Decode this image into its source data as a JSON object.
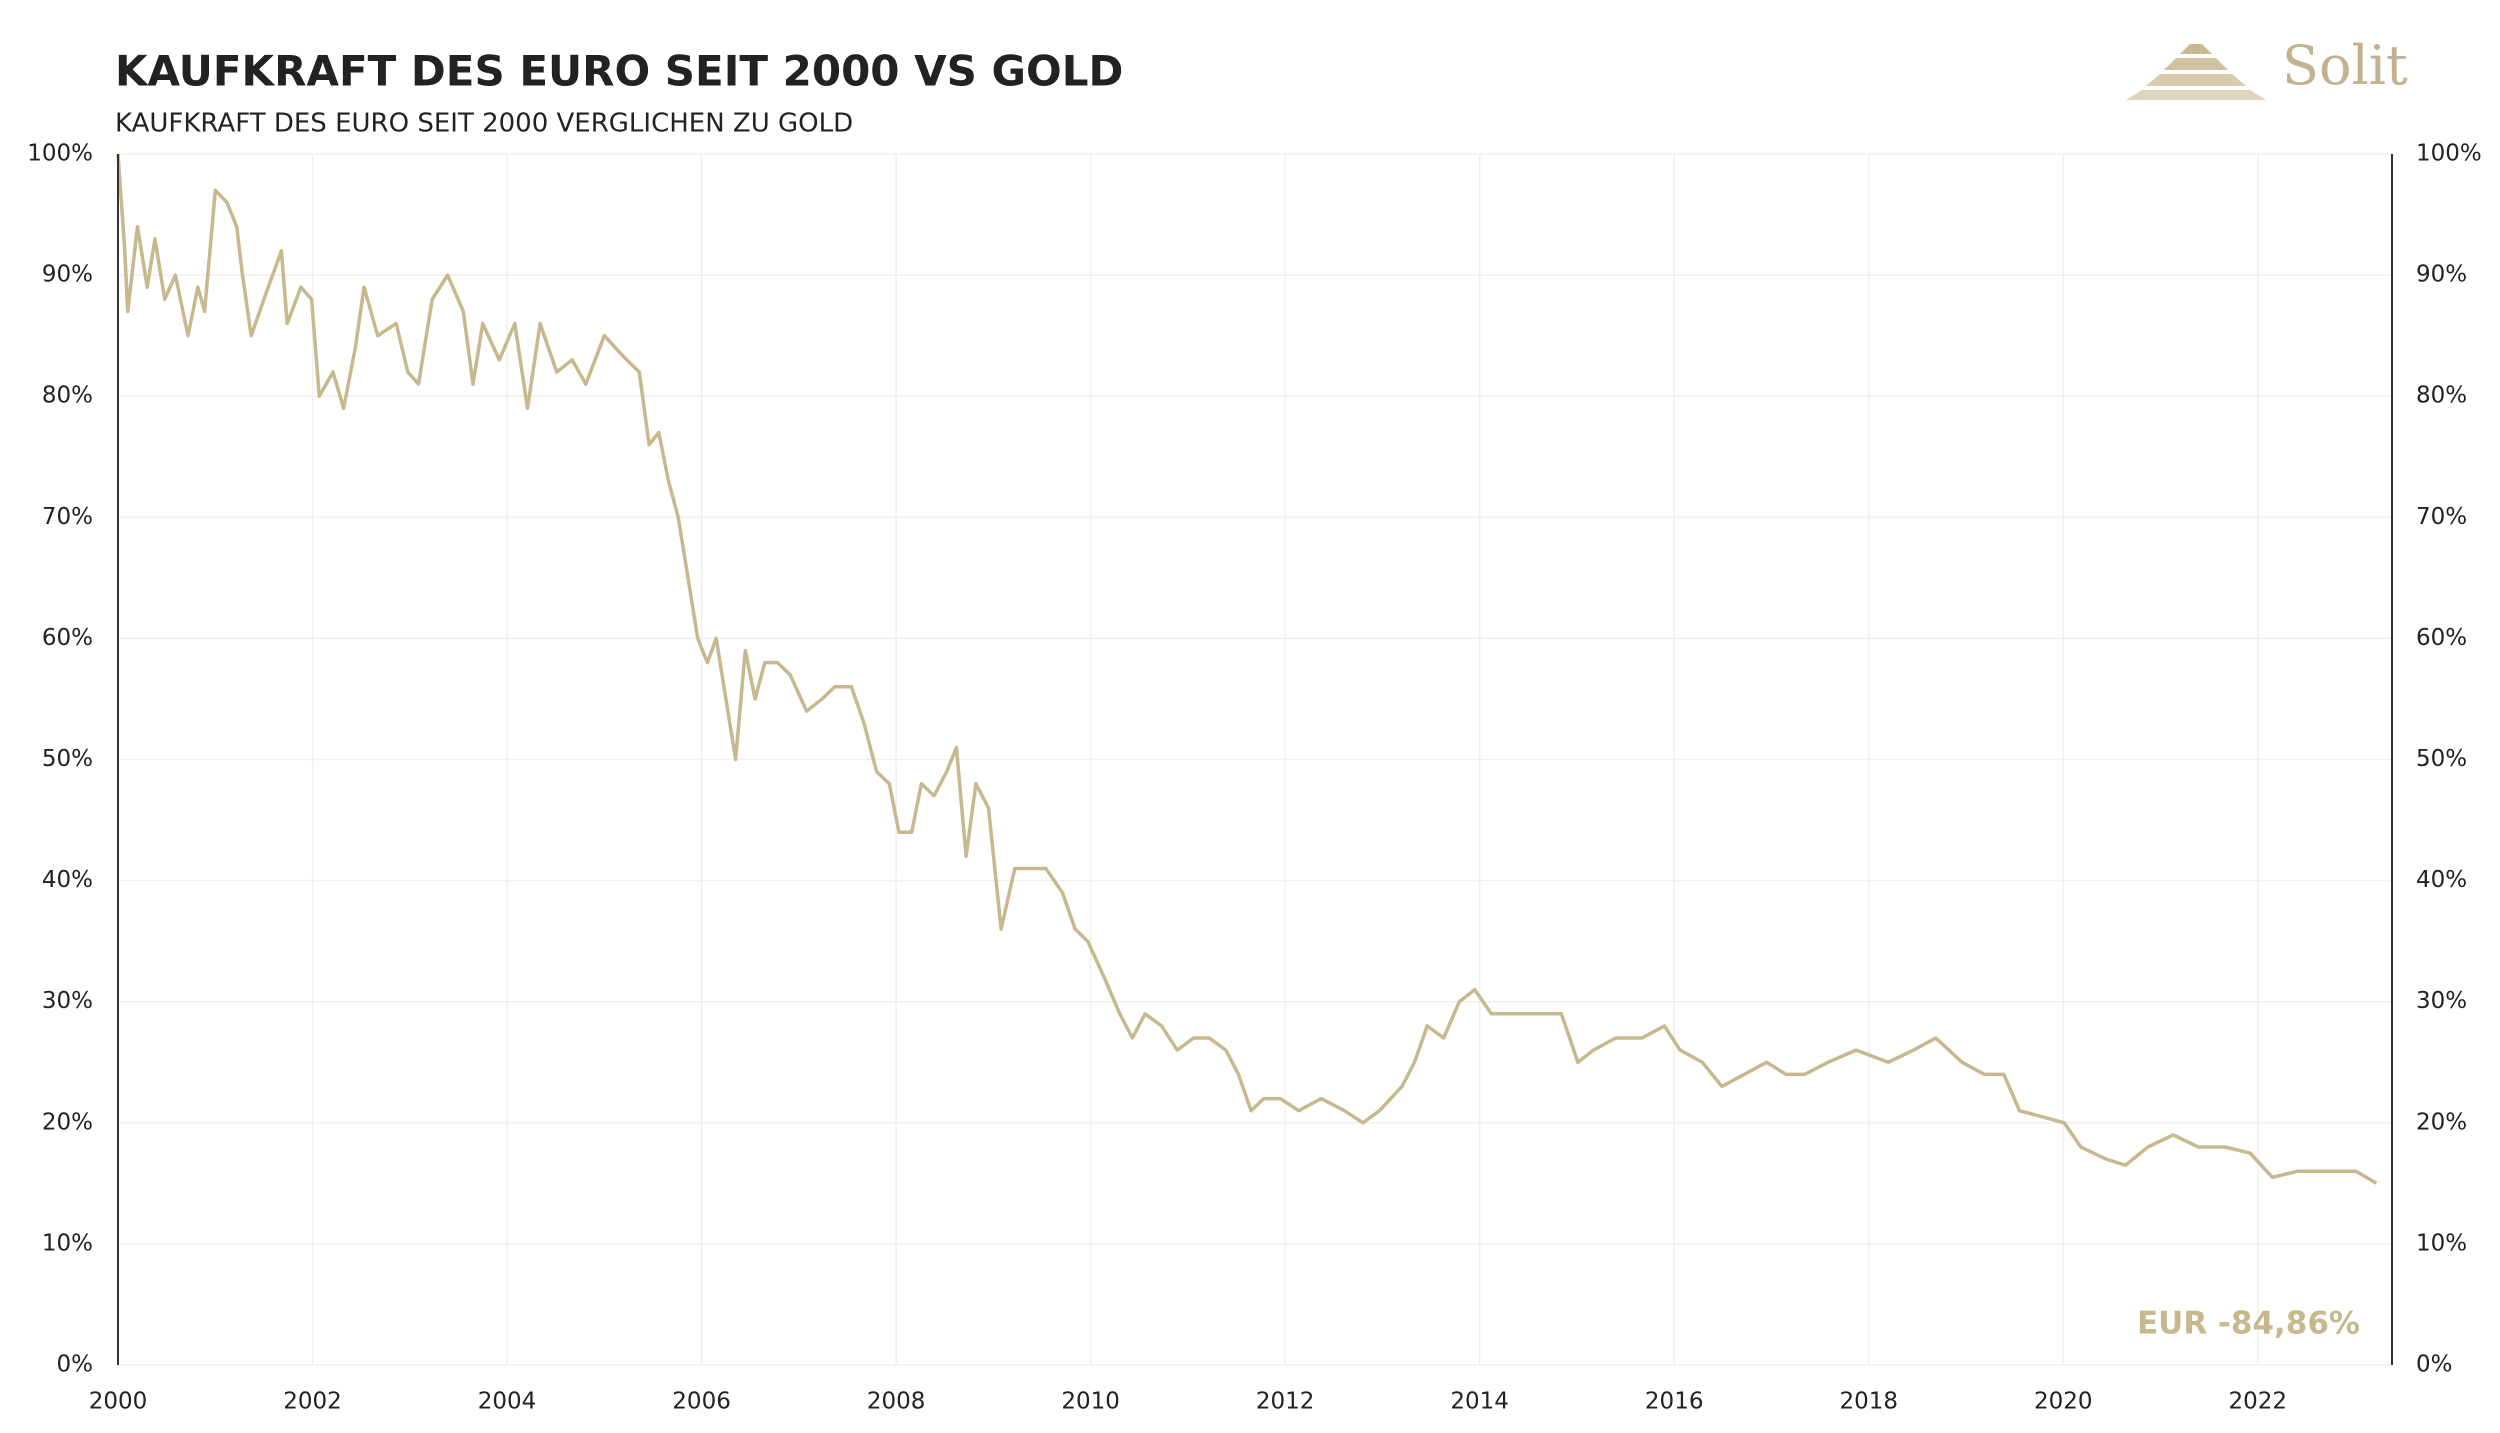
{
  "chart_data": {
    "type": "line",
    "title": "KAUFKRAFT DES EURO SEIT 2000 VS GOLD",
    "subtitle": "KAUFKRAFT DES EURO SEIT 2000 VERGLICHEN ZU GOLD",
    "annotation": "EUR -84,86%",
    "brand": "Solit",
    "xlim": [
      2000,
      2023.38
    ],
    "xticks": [
      2000,
      2002,
      2004,
      2006,
      2008,
      2010,
      2012,
      2014,
      2016,
      2018,
      2020,
      2022
    ],
    "ylim": [
      0,
      100
    ],
    "yticks": [
      {
        "value": 0,
        "label": "0%"
      },
      {
        "value": 10,
        "label": "10%"
      },
      {
        "value": 20,
        "label": "20%"
      },
      {
        "value": 30,
        "label": "30%"
      },
      {
        "value": 40,
        "label": "40%"
      },
      {
        "value": 50,
        "label": "50%"
      },
      {
        "value": 60,
        "label": "60%"
      },
      {
        "value": 70,
        "label": "70%"
      },
      {
        "value": 80,
        "label": "80%"
      },
      {
        "value": 90,
        "label": "90%"
      },
      {
        "value": 100,
        "label": "100%"
      }
    ],
    "grid": true,
    "x": [
      2000.0,
      2000.07,
      2000.1,
      2000.2,
      2000.3,
      2000.38,
      2000.48,
      2000.59,
      2000.72,
      2000.82,
      2000.89,
      2001.0,
      2001.12,
      2001.22,
      2001.28,
      2001.37,
      2001.5,
      2001.68,
      2001.74,
      2001.88,
      2001.99,
      2002.07,
      2002.21,
      2002.32,
      2002.44,
      2002.53,
      2002.67,
      2002.86,
      2002.98,
      2003.09,
      2003.23,
      2003.39,
      2003.55,
      2003.65,
      2003.75,
      2003.92,
      2004.08,
      2004.21,
      2004.34,
      2004.51,
      2004.67,
      2004.81,
      2005.0,
      2005.23,
      2005.36,
      2005.46,
      2005.56,
      2005.66,
      2005.76,
      2005.86,
      2005.96,
      2006.06,
      2006.15,
      2006.25,
      2006.35,
      2006.45,
      2006.55,
      2006.65,
      2006.78,
      2006.91,
      2007.08,
      2007.24,
      2007.37,
      2007.54,
      2007.67,
      2007.8,
      2007.93,
      2008.03,
      2008.16,
      2008.26,
      2008.39,
      2008.52,
      2008.62,
      2008.72,
      2008.82,
      2008.95,
      2009.08,
      2009.22,
      2009.38,
      2009.54,
      2009.71,
      2009.84,
      2009.97,
      2010.14,
      2010.3,
      2010.43,
      2010.56,
      2010.73,
      2010.89,
      2011.06,
      2011.22,
      2011.39,
      2011.52,
      2011.65,
      2011.78,
      2011.95,
      2012.14,
      2012.37,
      2012.61,
      2012.8,
      2012.97,
      2013.2,
      2013.33,
      2013.46,
      2013.63,
      2013.79,
      2013.95,
      2014.12,
      2014.35,
      2014.58,
      2014.84,
      2015.01,
      2015.17,
      2015.4,
      2015.67,
      2015.9,
      2016.06,
      2016.29,
      2016.49,
      2016.72,
      2016.95,
      2017.15,
      2017.34,
      2017.58,
      2017.87,
      2018.2,
      2018.46,
      2018.69,
      2018.96,
      2019.19,
      2019.39,
      2019.55,
      2019.78,
      2020.01,
      2020.18,
      2020.44,
      2020.64,
      2020.87,
      2021.13,
      2021.39,
      2021.66,
      2021.92,
      2022.15,
      2022.41,
      2022.74,
      2023.01,
      2023.22
    ],
    "series": [
      {
        "color": "#c8b88e",
        "values": [
          100,
          92,
          87,
          94,
          89,
          93,
          88,
          90,
          85,
          89,
          87,
          97,
          96,
          94,
          90,
          85,
          88,
          92,
          86,
          89,
          88,
          80,
          82,
          79,
          84,
          89,
          85,
          86,
          82,
          81,
          88,
          90,
          87,
          81,
          86,
          83,
          86,
          79,
          86,
          82,
          83,
          81,
          85,
          83,
          82,
          76,
          77,
          73,
          70,
          65,
          60,
          58,
          60,
          55,
          50,
          59,
          55,
          58,
          58,
          57,
          54,
          55,
          56,
          56,
          53,
          49,
          48,
          44,
          44,
          48,
          47,
          49,
          51,
          42,
          48,
          46,
          36,
          41,
          41,
          41,
          39,
          36,
          35,
          32,
          29,
          27,
          29,
          28,
          26,
          27,
          27,
          26,
          24,
          21,
          22,
          22,
          21,
          22,
          21,
          20,
          21,
          23,
          25,
          28,
          27,
          30,
          31,
          29,
          29,
          29,
          29,
          25,
          26,
          27,
          27,
          28,
          26,
          25,
          23,
          24,
          25,
          24,
          24,
          25,
          26,
          25,
          26,
          27,
          25,
          24,
          24,
          21,
          20.5,
          20,
          18,
          17,
          16.5,
          18,
          19,
          18,
          18,
          17.5,
          15.5,
          16,
          16,
          16,
          15
        ]
      }
    ]
  }
}
